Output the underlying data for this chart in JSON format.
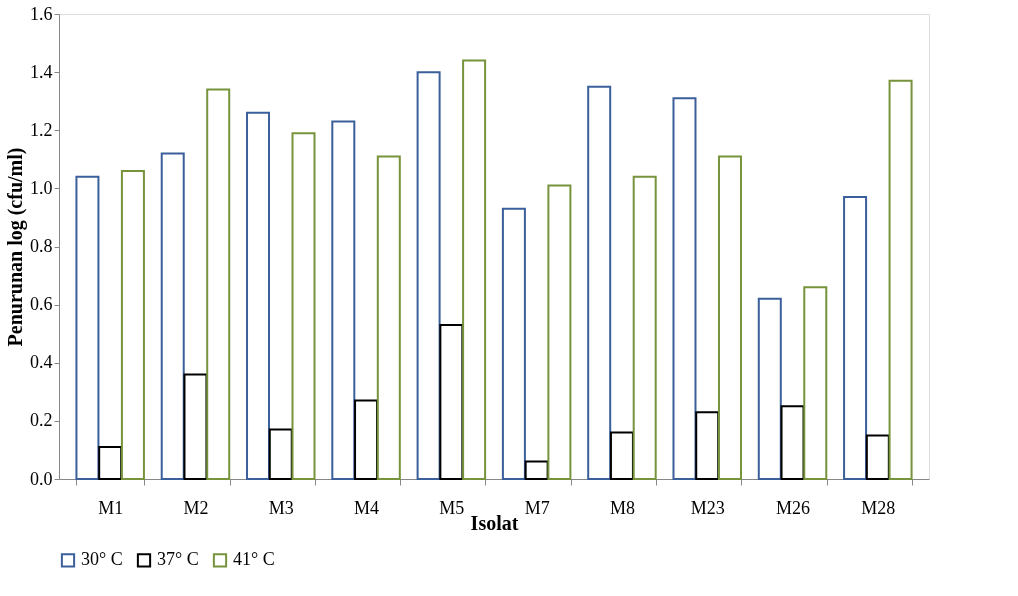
{
  "chart_data": {
    "type": "bar",
    "xlabel": "Isolat",
    "ylabel": "Penurunan log (cfu/ml)",
    "categories": [
      "M1",
      "M2",
      "M3",
      "M4",
      "M5",
      "M7",
      "M8",
      "M23",
      "M26",
      "M28"
    ],
    "series": [
      {
        "name": "30° C",
        "color": "#3a5f9a",
        "values": [
          1.04,
          1.12,
          1.26,
          1.23,
          1.4,
          0.93,
          1.35,
          1.31,
          0.62,
          0.97
        ]
      },
      {
        "name": "37° C",
        "color": "#000000",
        "values": [
          0.11,
          0.36,
          0.17,
          0.27,
          0.53,
          0.06,
          0.16,
          0.23,
          0.25,
          0.15
        ]
      },
      {
        "name": "41° C",
        "color": "#77933c",
        "values": [
          1.06,
          1.34,
          1.19,
          1.11,
          1.44,
          1.01,
          1.04,
          1.11,
          0.66,
          1.37
        ]
      }
    ],
    "ylim": [
      0,
      1.6
    ],
    "yticks": [
      {
        "value": 0,
        "label": "0.0"
      },
      0.2,
      0.4,
      0.6,
      0.8,
      {
        "value": 1,
        "label": "1.0"
      },
      1.2,
      1.4,
      1.6
    ],
    "grid": false,
    "legend": "bottom"
  }
}
